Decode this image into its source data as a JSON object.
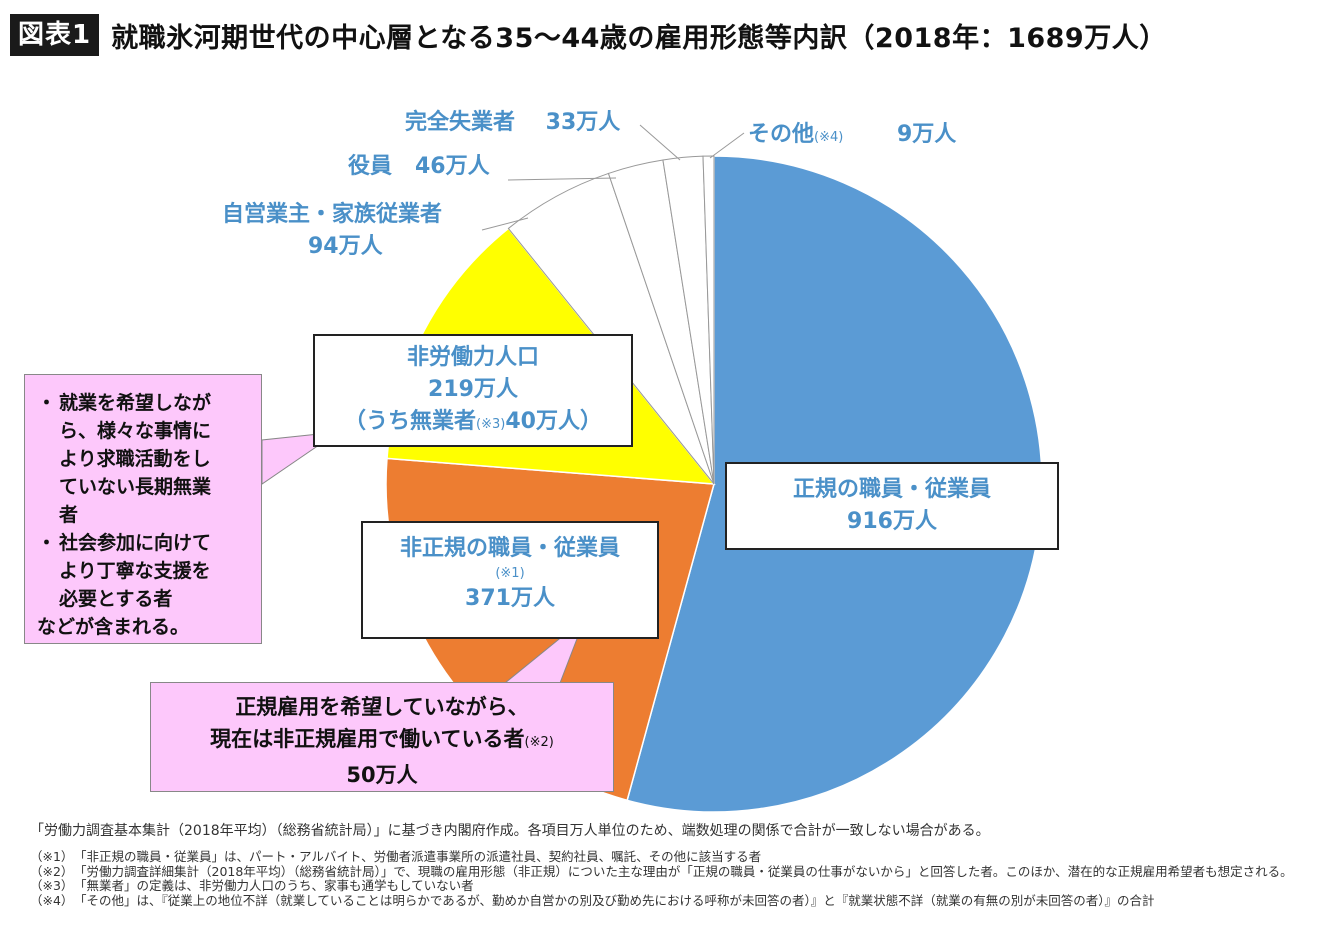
{
  "header": {
    "tag": "図表1",
    "title": "就職氷河期世代の中心層となる35〜44歳の雇用形態等内訳（2018年：1689万人）"
  },
  "chart_data": {
    "type": "pie",
    "title": "就職氷河期世代の中心層となる35〜44歳の雇用形態等内訳（2018年：1689万人）",
    "total": 1689,
    "unit": "万人",
    "slices": [
      {
        "name": "正規の職員・従業員",
        "value": 916,
        "value_label": "916万人",
        "color": "#5b9bd5"
      },
      {
        "name": "非正規の職員・従業員",
        "value": 371,
        "value_label": "371万人",
        "note": "(※1)",
        "color": "#ed7d31"
      },
      {
        "name": "非労働力人口",
        "value": 219,
        "value_label": "219万人",
        "sub_label": "（うち無業者",
        "sub_note": "(※3)",
        "sub_value": "40万人）",
        "color": "#ffff00"
      },
      {
        "name": "自営業主・家族従業者",
        "value": 94,
        "value_label": "94万人",
        "color": "#ffffff"
      },
      {
        "name": "役員",
        "value": 46,
        "value_label": "46万人",
        "color": "#ffffff"
      },
      {
        "name": "完全失業者",
        "value": 33,
        "value_label": "33万人",
        "color": "#ffffff"
      },
      {
        "name": "その他",
        "value": 9,
        "value_label": "9万人",
        "note": "(※4)",
        "color": "#ffffff"
      }
    ]
  },
  "callout_left": {
    "bullets": [
      {
        "dot": "・",
        "lines": [
          "就業を希望しなが",
          "ら、様々な事情に",
          "より求職活動をし",
          "ていない長期無業",
          "者"
        ]
      },
      {
        "dot": "・",
        "lines": [
          "社会参加に向けて",
          "より丁寧な支援を",
          "必要とする者"
        ]
      }
    ],
    "tail": "などが含まれる。"
  },
  "callout_bottom": {
    "line1": "正規雇用を希望していながら、",
    "line2": "現在は非正規雇用で働いている者",
    "note": "(※2)",
    "line3": "50万人"
  },
  "notes": {
    "source": "「労働力調査基本集計（2018年平均）（総務省統計局）」に基づき内閣府作成。各項目万人単位のため、端数処理の関係で合計が一致しない場合がある。",
    "items": [
      {
        "mark": "（※1）",
        "text": "「非正規の職員・従業員」は、パート・アルバイト、労働者派遣事業所の派遣社員、契約社員、嘱託、その他に該当する者"
      },
      {
        "mark": "（※2）",
        "text": "「労働力調査詳細集計（2018年平均）（総務省統計局）」で、現職の雇用形態（非正規）についた主な理由が「正規の職員・従業員の仕事がないから」と回答した者。このほか、潜在的な正規雇用希望者も想定される。"
      },
      {
        "mark": "（※3）",
        "text": "「無業者」の定義は、非労働力人口のうち、家事も通学もしていない者"
      },
      {
        "mark": "（※4）",
        "text": "「その他」は、『従業上の地位不詳（就業していることは明らかであるが、勤めか自営かの別及び勤め先における呼称が未回答の者）』と『就業状態不詳（就業の有無の別が未回答の者）』の合計"
      }
    ]
  }
}
